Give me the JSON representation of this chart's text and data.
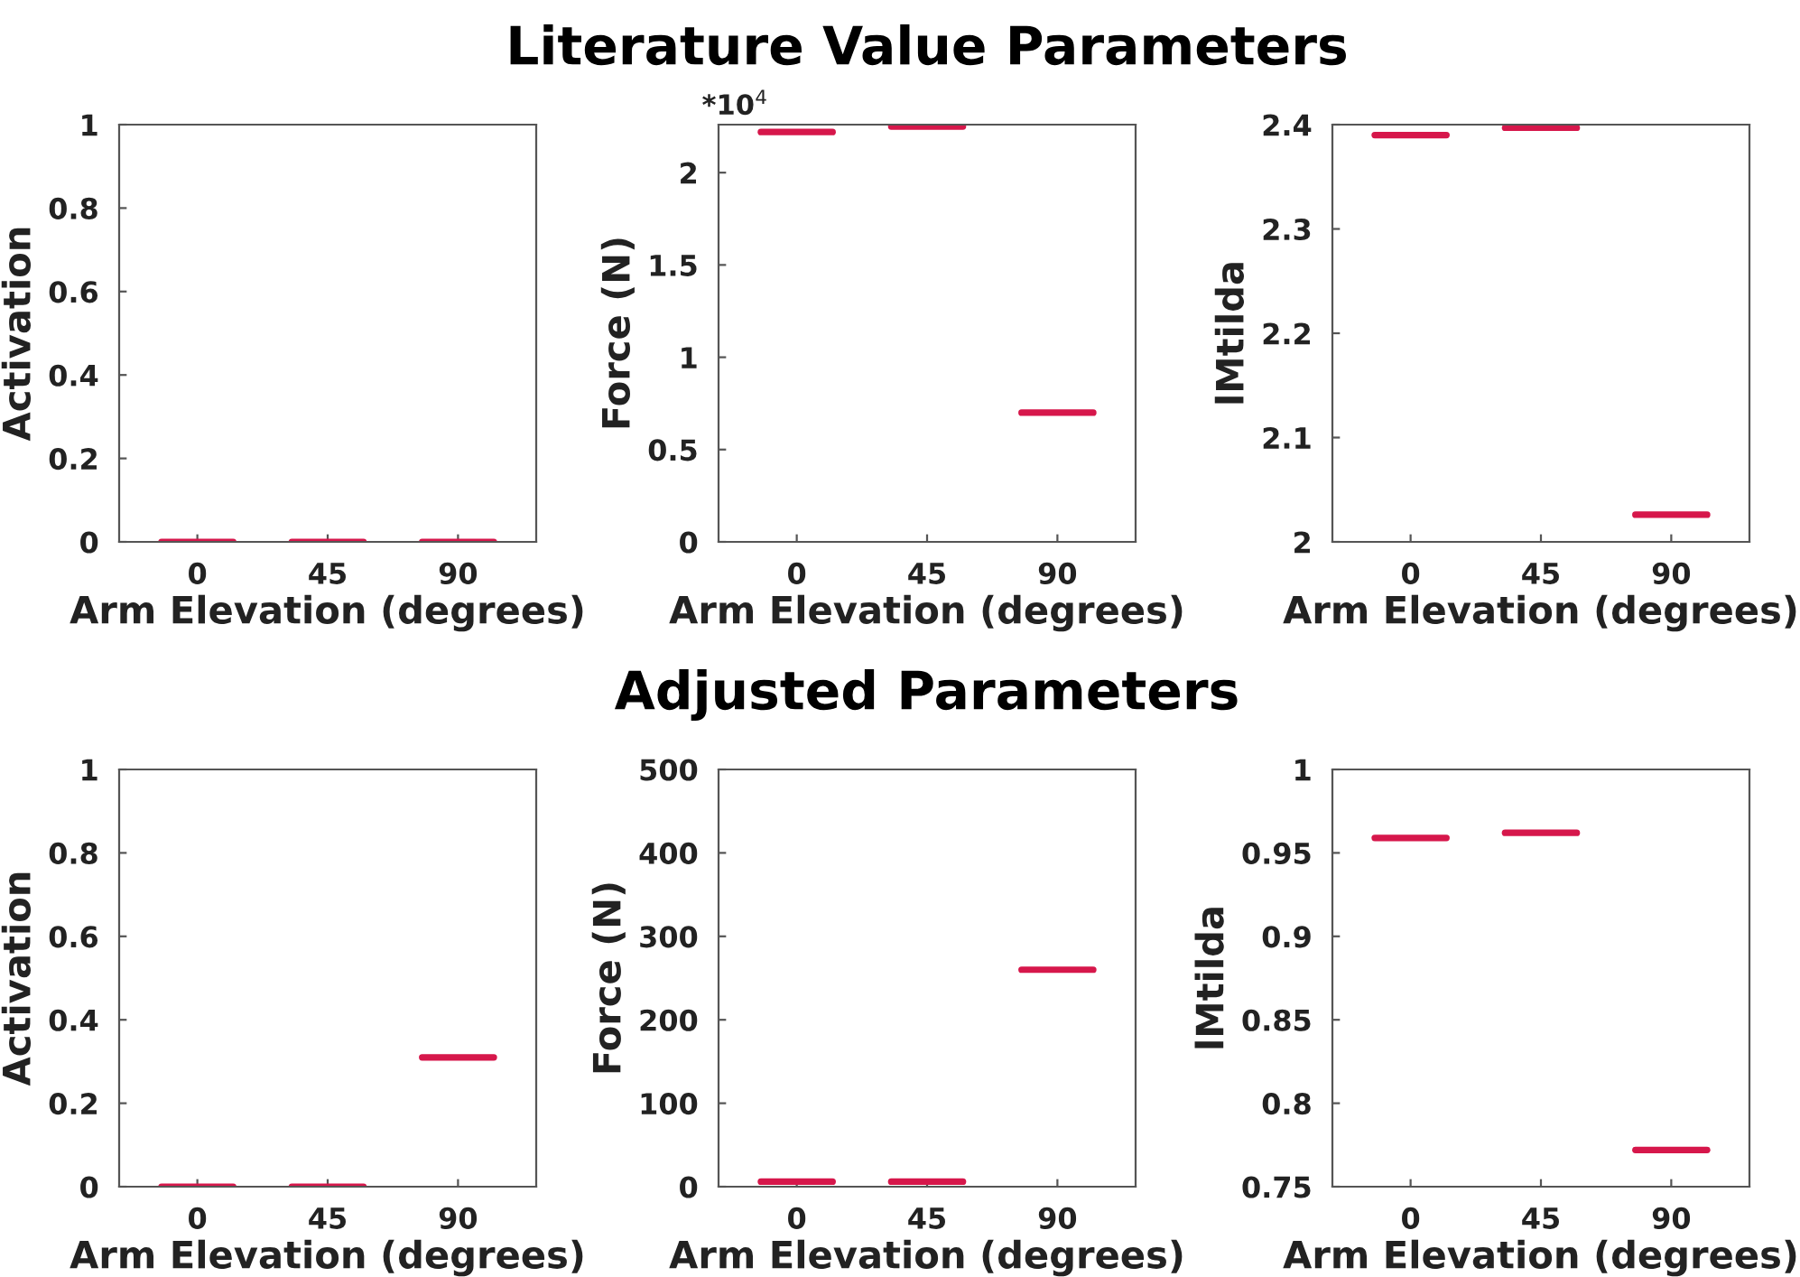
{
  "chart_data": [
    {
      "type": "box",
      "categories": [
        "0",
        "45",
        "90"
      ],
      "xlabel": "Arm Elevation (degrees)",
      "ylabel": "Activation",
      "ylim": [
        0,
        1
      ],
      "yticks": [
        0,
        0.2,
        0.4,
        0.6,
        0.8,
        1
      ],
      "grid": false,
      "color": "#d6174b",
      "boxes": [
        {
          "low": 0,
          "q1": 0,
          "median": 0,
          "q3": 0,
          "high": 0
        },
        {
          "low": 0,
          "q1": 0,
          "median": 0,
          "q3": 0,
          "high": 0
        },
        {
          "low": 0,
          "q1": 0,
          "median": 0,
          "q3": 0,
          "high": 0
        }
      ]
    },
    {
      "type": "box",
      "title": "Literature Value Parameters",
      "categories": [
        "0",
        "45",
        "90"
      ],
      "xlabel": "Arm Elevation (degrees)",
      "ylabel": "Force (N)",
      "ylim": [
        0,
        2.26
      ],
      "yticks": [
        0,
        0.5,
        1,
        1.5,
        2
      ],
      "grid": false,
      "color": "#d6174b",
      "annotations": [
        "*10$^{4}$"
      ],
      "boxes": [
        {
          "low": 2.22,
          "q1": 2.22,
          "median": 2.22,
          "q3": 2.22,
          "high": 2.22
        },
        {
          "low": 2.25,
          "q1": 2.25,
          "median": 2.25,
          "q3": 2.25,
          "high": 2.25
        },
        {
          "low": 0.7,
          "q1": 0.7,
          "median": 0.7,
          "q3": 0.7,
          "high": 0.7
        }
      ]
    },
    {
      "type": "box",
      "categories": [
        "0",
        "45",
        "90"
      ],
      "xlabel": "Arm Elevation (degrees)",
      "ylabel": "lMtilda",
      "ylim": [
        2,
        2.4
      ],
      "yticks": [
        2,
        2.1,
        2.2,
        2.3,
        2.4
      ],
      "grid": false,
      "color": "#d6174b",
      "boxes": [
        {
          "low": 2.39,
          "q1": 2.39,
          "median": 2.39,
          "q3": 2.39,
          "high": 2.39
        },
        {
          "low": 2.397,
          "q1": 2.397,
          "median": 2.397,
          "q3": 2.397,
          "high": 2.397
        },
        {
          "low": 2.026,
          "q1": 2.026,
          "median": 2.026,
          "q3": 2.026,
          "high": 2.026
        }
      ]
    },
    {
      "type": "box",
      "categories": [
        "0",
        "45",
        "90"
      ],
      "xlabel": "Arm Elevation (degrees)",
      "ylabel": "Activation",
      "ylim": [
        0,
        1
      ],
      "yticks": [
        0,
        0.2,
        0.4,
        0.6,
        0.8,
        1
      ],
      "grid": false,
      "color": "#d6174b",
      "boxes": [
        {
          "low": 0,
          "q1": 0,
          "median": 0,
          "q3": 0,
          "high": 0
        },
        {
          "low": 0,
          "q1": 0,
          "median": 0,
          "q3": 0,
          "high": 0
        },
        {
          "low": 0.31,
          "q1": 0.31,
          "median": 0.31,
          "q3": 0.31,
          "high": 0.31
        }
      ]
    },
    {
      "type": "box",
      "title": "Adjusted Parameters",
      "categories": [
        "0",
        "45",
        "90"
      ],
      "xlabel": "Arm Elevation (degrees)",
      "ylabel": "Force (N)",
      "ylim": [
        0,
        500
      ],
      "yticks": [
        0,
        100,
        200,
        300,
        400,
        500
      ],
      "grid": false,
      "color": "#d6174b",
      "boxes": [
        {
          "low": 6,
          "q1": 6,
          "median": 6,
          "q3": 6,
          "high": 6
        },
        {
          "low": 6,
          "q1": 6,
          "median": 6,
          "q3": 6,
          "high": 6
        },
        {
          "low": 260,
          "q1": 260,
          "median": 260,
          "q3": 260,
          "high": 260
        }
      ]
    },
    {
      "type": "box",
      "categories": [
        "0",
        "45",
        "90"
      ],
      "xlabel": "Arm Elevation (degrees)",
      "ylabel": "lMtilda",
      "ylim": [
        0.75,
        1
      ],
      "yticks": [
        0.75,
        0.8,
        0.85,
        0.9,
        0.95,
        1
      ],
      "grid": false,
      "color": "#d6174b",
      "boxes": [
        {
          "low": 0.959,
          "q1": 0.959,
          "median": 0.959,
          "q3": 0.959,
          "high": 0.959
        },
        {
          "low": 0.962,
          "q1": 0.962,
          "median": 0.962,
          "q3": 0.962,
          "high": 0.962
        },
        {
          "low": 0.772,
          "q1": 0.772,
          "median": 0.772,
          "q3": 0.772,
          "high": 0.772
        }
      ]
    }
  ]
}
